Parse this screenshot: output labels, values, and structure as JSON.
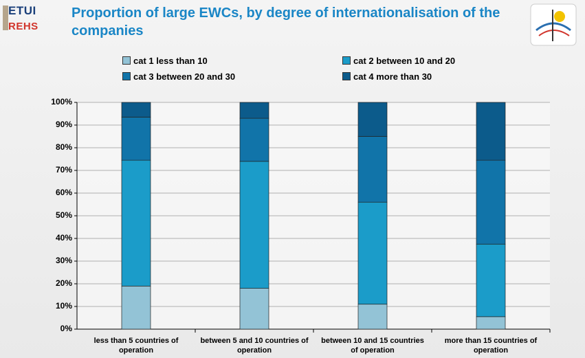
{
  "header": {
    "logo": [
      "ETUI",
      "REHS"
    ]
  },
  "chart_data": {
    "type": "stacked_bar",
    "title": "Proportion of large EWCs, by degree of internationalisation of the companies",
    "categories": [
      "less than 5 countries of operation",
      "between 5 and 10 countries of operation",
      "between 10 and 15 countries of operation",
      "more than 15 countries of operation"
    ],
    "series": [
      {
        "name": "cat 1 less than 10",
        "color": "#93c3d6",
        "values": [
          19,
          18,
          11,
          5.5
        ]
      },
      {
        "name": "cat 2 between 10 and 20",
        "color": "#1b9cc9",
        "values": [
          55.5,
          56,
          45,
          32
        ]
      },
      {
        "name": "cat 3 between 20 and 30",
        "color": "#1174a9",
        "values": [
          19,
          19,
          29,
          37
        ]
      },
      {
        "name": "cat 4 more than 30",
        "color": "#0c5b8b",
        "values": [
          6.5,
          7,
          15,
          25.5
        ]
      }
    ],
    "ylim": [
      0,
      100
    ],
    "yticks": [
      {
        "value": 0,
        "label": "0%"
      },
      {
        "value": 10,
        "label": "10%"
      },
      {
        "value": 20,
        "label": "20%"
      },
      {
        "value": 30,
        "label": "30%"
      },
      {
        "value": 40,
        "label": "40%"
      },
      {
        "value": 50,
        "label": "50%"
      },
      {
        "value": 60,
        "label": "60%"
      },
      {
        "value": 70,
        "label": "70%"
      },
      {
        "value": 80,
        "label": "80%"
      },
      {
        "value": 90,
        "label": "90%"
      },
      {
        "value": 100,
        "label": "100%"
      }
    ],
    "grid": true
  }
}
